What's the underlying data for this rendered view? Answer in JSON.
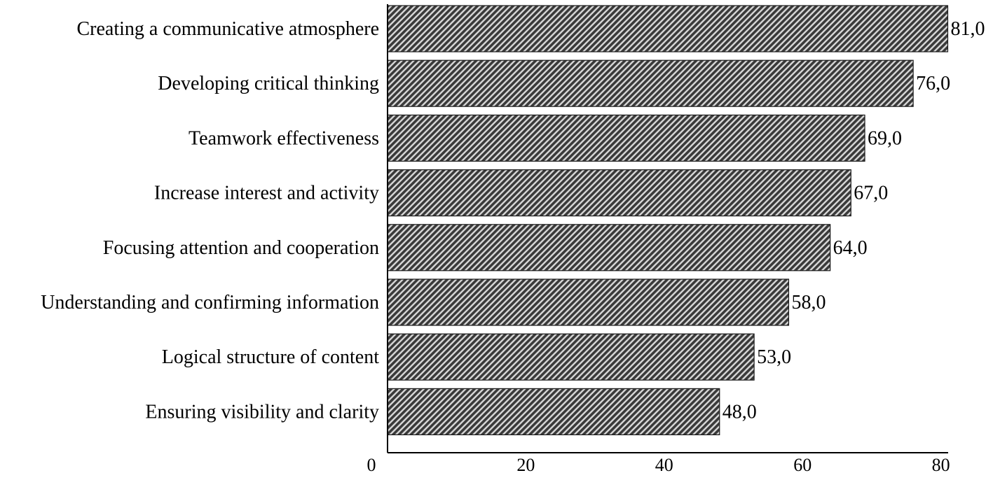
{
  "chart_data": {
    "type": "bar",
    "orientation": "horizontal",
    "categories": [
      "Creating a communicative atmosphere",
      "Developing critical thinking",
      "Teamwork effectiveness",
      "Increase interest and activity",
      "Focusing attention and cooperation",
      "Understanding and confirming information",
      "Logical structure of content",
      "Ensuring visibility and clarity"
    ],
    "values": [
      81.0,
      76.0,
      69.0,
      67.0,
      64.0,
      58.0,
      53.0,
      48.0
    ],
    "value_labels": [
      "81,0",
      "76,0",
      "69,0",
      "67,0",
      "64,0",
      "58,0",
      "53,0",
      "48,0"
    ],
    "xticks": [
      0,
      20,
      40,
      60,
      80
    ],
    "xtick_labels": [
      "0",
      "20",
      "40",
      "60",
      "80"
    ],
    "xlim": [
      0,
      81
    ],
    "grid": false,
    "bar_fill": "hatched-diagonal",
    "colors": {
      "bar_dark": "#3a3a3a",
      "bar_light": "#d8d8d8",
      "bar_border": "#1a1a1a",
      "axis": "#000000"
    }
  }
}
